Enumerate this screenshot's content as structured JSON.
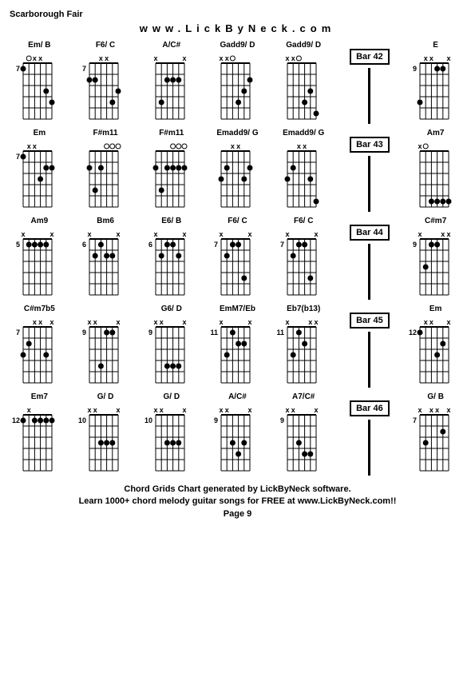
{
  "title": "Scarborough Fair",
  "url": "www.LickByNeck.com",
  "footer": {
    "line1": "Chord Grids Chart generated by LickByNeck software.",
    "line2": "Learn 1000+ chord melody guitar songs for FREE at www.LickByNeck.com!!",
    "line3": "Page 9"
  },
  "style": {
    "bg": "#ffffff",
    "text": "#000000",
    "grid_line": "#000000",
    "dot": "#000000",
    "open_circle_stroke": "#000000",
    "chord_width": 54,
    "chord_height": 100,
    "frets": 5,
    "strings": 6,
    "fret_label_fontsize": 10,
    "chord_label_fontsize": 10
  },
  "rows": [
    {
      "bar": "Bar 42",
      "chords": [
        {
          "name": "Em/ B",
          "fret": 7,
          "mutes": [
            0,
            0,
            1,
            1,
            0,
            0
          ],
          "opens": [
            0,
            1,
            0,
            0,
            0,
            0
          ],
          "dots": [
            [
              1,
              1
            ],
            [
              3,
              5
            ],
            [
              4,
              6
            ]
          ]
        },
        {
          "name": "F6/ C",
          "fret": 7,
          "mutes": [
            0,
            0,
            1,
            1,
            0,
            0
          ],
          "opens": [
            0,
            0,
            0,
            0,
            0,
            0
          ],
          "dots": [
            [
              2,
              1
            ],
            [
              2,
              2
            ],
            [
              4,
              5
            ],
            [
              3,
              6
            ]
          ]
        },
        {
          "name": "A/C#",
          "fret": null,
          "mutes": [
            1,
            0,
            0,
            0,
            0,
            1
          ],
          "opens": [
            0,
            0,
            0,
            0,
            0,
            0
          ],
          "dots": [
            [
              4,
              2
            ],
            [
              2,
              3
            ],
            [
              2,
              4
            ],
            [
              2,
              5
            ]
          ]
        },
        {
          "name": "Gadd9/ D",
          "fret": null,
          "mutes": [
            1,
            1,
            0,
            0,
            0,
            0
          ],
          "opens": [
            0,
            0,
            1,
            0,
            0,
            0
          ],
          "dots": [
            [
              4,
              4
            ],
            [
              3,
              5
            ],
            [
              2,
              6
            ]
          ]
        },
        {
          "name": "Gadd9/ D",
          "fret": null,
          "mutes": [
            1,
            1,
            0,
            0,
            0,
            0
          ],
          "opens": [
            0,
            0,
            1,
            0,
            0,
            0
          ],
          "dots": [
            [
              4,
              4
            ],
            [
              3,
              5
            ],
            [
              5,
              6
            ]
          ]
        },
        {
          "name": "E",
          "fret": 9,
          "mutes": [
            0,
            1,
            1,
            0,
            0,
            1
          ],
          "opens": [
            0,
            0,
            0,
            0,
            0,
            0
          ],
          "dots": [
            [
              4,
              1
            ],
            [
              1,
              4
            ],
            [
              1,
              5
            ]
          ]
        }
      ]
    },
    {
      "bar": "Bar 43",
      "chords": [
        {
          "name": "Em",
          "fret": 7,
          "mutes": [
            0,
            1,
            1,
            0,
            0,
            0
          ],
          "opens": [
            0,
            0,
            0,
            0,
            0,
            0
          ],
          "dots": [
            [
              1,
              1
            ],
            [
              3,
              4
            ],
            [
              2,
              5
            ],
            [
              2,
              6
            ]
          ]
        },
        {
          "name": "F#m11",
          "fret": null,
          "mutes": [
            0,
            0,
            0,
            0,
            0,
            0
          ],
          "opens": [
            0,
            0,
            0,
            1,
            1,
            1
          ],
          "dots": [
            [
              2,
              1
            ],
            [
              4,
              2
            ],
            [
              2,
              3
            ]
          ]
        },
        {
          "name": "F#m11",
          "fret": null,
          "mutes": [
            0,
            0,
            0,
            0,
            0,
            0
          ],
          "opens": [
            0,
            0,
            0,
            1,
            1,
            1
          ],
          "dots": [
            [
              2,
              1
            ],
            [
              4,
              2
            ],
            [
              2,
              3
            ],
            [
              2,
              4
            ],
            [
              2,
              5
            ],
            [
              2,
              6
            ]
          ]
        },
        {
          "name": "Emadd9/ G",
          "fret": null,
          "mutes": [
            0,
            0,
            1,
            1,
            0,
            0
          ],
          "opens": [
            0,
            0,
            0,
            0,
            0,
            0
          ],
          "dots": [
            [
              3,
              1
            ],
            [
              2,
              2
            ],
            [
              3,
              5
            ],
            [
              2,
              6
            ]
          ]
        },
        {
          "name": "Emadd9/ G",
          "fret": null,
          "mutes": [
            0,
            0,
            1,
            1,
            0,
            0
          ],
          "opens": [
            0,
            0,
            0,
            0,
            0,
            0
          ],
          "dots": [
            [
              3,
              1
            ],
            [
              2,
              2
            ],
            [
              3,
              5
            ],
            [
              5,
              6
            ]
          ]
        },
        {
          "name": "Am7",
          "fret": null,
          "mutes": [
            1,
            0,
            0,
            0,
            0,
            0
          ],
          "opens": [
            0,
            1,
            0,
            0,
            0,
            0
          ],
          "dots": [
            [
              5,
              3
            ],
            [
              5,
              4
            ],
            [
              5,
              5
            ],
            [
              5,
              6
            ]
          ]
        }
      ]
    },
    {
      "bar": "Bar 44",
      "chords": [
        {
          "name": "Am9",
          "fret": 5,
          "mutes": [
            1,
            0,
            0,
            0,
            0,
            1
          ],
          "opens": [
            0,
            0,
            0,
            0,
            0,
            0
          ],
          "dots": [
            [
              1,
              2
            ],
            [
              1,
              3
            ],
            [
              1,
              4
            ],
            [
              1,
              5
            ]
          ]
        },
        {
          "name": "Bm6",
          "fret": 6,
          "mutes": [
            1,
            0,
            0,
            0,
            0,
            1
          ],
          "opens": [
            0,
            0,
            0,
            0,
            0,
            0
          ],
          "dots": [
            [
              2,
              2
            ],
            [
              1,
              3
            ],
            [
              2,
              4
            ],
            [
              2,
              5
            ]
          ]
        },
        {
          "name": "E6/ B",
          "fret": 6,
          "mutes": [
            1,
            0,
            0,
            0,
            0,
            1
          ],
          "opens": [
            0,
            0,
            0,
            0,
            0,
            0
          ],
          "dots": [
            [
              2,
              2
            ],
            [
              1,
              3
            ],
            [
              1,
              4
            ],
            [
              2,
              5
            ]
          ]
        },
        {
          "name": "F6/ C",
          "fret": 7,
          "mutes": [
            1,
            0,
            0,
            0,
            0,
            1
          ],
          "opens": [
            0,
            0,
            0,
            0,
            0,
            0
          ],
          "dots": [
            [
              2,
              2
            ],
            [
              1,
              3
            ],
            [
              1,
              4
            ],
            [
              4,
              5
            ]
          ]
        },
        {
          "name": "F6/ C",
          "fret": 7,
          "mutes": [
            1,
            0,
            0,
            0,
            0,
            1
          ],
          "opens": [
            0,
            0,
            0,
            0,
            0,
            0
          ],
          "dots": [
            [
              2,
              2
            ],
            [
              1,
              3
            ],
            [
              1,
              4
            ],
            [
              4,
              5
            ]
          ]
        },
        {
          "name": "C#m7",
          "fret": 9,
          "mutes": [
            1,
            0,
            0,
            0,
            1,
            1
          ],
          "opens": [
            0,
            0,
            0,
            0,
            0,
            0
          ],
          "dots": [
            [
              3,
              2
            ],
            [
              1,
              3
            ],
            [
              1,
              4
            ]
          ]
        }
      ]
    },
    {
      "bar": "Bar 45",
      "chords": [
        {
          "name": "C#m7b5",
          "fret": 7,
          "mutes": [
            0,
            0,
            1,
            1,
            0,
            1
          ],
          "opens": [
            0,
            0,
            0,
            0,
            0,
            0
          ],
          "dots": [
            [
              3,
              1
            ],
            [
              2,
              2
            ],
            [
              3,
              5
            ]
          ]
        },
        {
          "name": "",
          "fret": 9,
          "mutes": [
            1,
            1,
            0,
            0,
            0,
            1
          ],
          "opens": [
            0,
            0,
            0,
            0,
            0,
            0
          ],
          "dots": [
            [
              4,
              3
            ],
            [
              1,
              4
            ],
            [
              1,
              5
            ]
          ]
        },
        {
          "name": "G6/ D",
          "fret": 9,
          "mutes": [
            1,
            1,
            0,
            0,
            0,
            1
          ],
          "opens": [
            0,
            0,
            0,
            0,
            0,
            0
          ],
          "dots": [
            [
              4,
              3
            ],
            [
              4,
              4
            ],
            [
              4,
              5
            ]
          ]
        },
        {
          "name": "EmM7/Eb",
          "fret": 11,
          "mutes": [
            1,
            0,
            0,
            0,
            0,
            1
          ],
          "opens": [
            0,
            0,
            0,
            0,
            0,
            0
          ],
          "dots": [
            [
              3,
              2
            ],
            [
              1,
              3
            ],
            [
              2,
              4
            ],
            [
              2,
              5
            ]
          ]
        },
        {
          "name": "Eb7(b13)",
          "fret": 11,
          "mutes": [
            1,
            0,
            0,
            0,
            1,
            1
          ],
          "opens": [
            0,
            0,
            0,
            0,
            0,
            0
          ],
          "dots": [
            [
              3,
              2
            ],
            [
              1,
              3
            ],
            [
              2,
              4
            ]
          ]
        },
        {
          "name": "Em",
          "fret": 12,
          "mutes": [
            0,
            1,
            1,
            0,
            0,
            1
          ],
          "opens": [
            0,
            0,
            0,
            0,
            0,
            0
          ],
          "dots": [
            [
              1,
              1
            ],
            [
              3,
              4
            ],
            [
              2,
              5
            ]
          ]
        }
      ]
    },
    {
      "bar": "Bar 46",
      "chords": [
        {
          "name": "Em7",
          "fret": 12,
          "mutes": [
            0,
            1,
            0,
            0,
            0,
            0
          ],
          "opens": [
            0,
            0,
            0,
            0,
            0,
            0
          ],
          "dots": [
            [
              1,
              1
            ],
            [
              1,
              3
            ],
            [
              1,
              4
            ],
            [
              1,
              5
            ],
            [
              1,
              6
            ]
          ]
        },
        {
          "name": "G/ D",
          "fret": 10,
          "mutes": [
            1,
            1,
            0,
            0,
            0,
            1
          ],
          "opens": [
            0,
            0,
            0,
            0,
            0,
            0
          ],
          "dots": [
            [
              3,
              3
            ],
            [
              3,
              4
            ],
            [
              3,
              5
            ]
          ]
        },
        {
          "name": "G/ D",
          "fret": 10,
          "mutes": [
            1,
            1,
            0,
            0,
            0,
            1
          ],
          "opens": [
            0,
            0,
            0,
            0,
            0,
            0
          ],
          "dots": [
            [
              3,
              3
            ],
            [
              3,
              4
            ],
            [
              3,
              5
            ]
          ]
        },
        {
          "name": "A/C#",
          "fret": 9,
          "mutes": [
            1,
            1,
            0,
            0,
            0,
            1
          ],
          "opens": [
            0,
            0,
            0,
            0,
            0,
            0
          ],
          "dots": [
            [
              3,
              3
            ],
            [
              4,
              4
            ],
            [
              3,
              5
            ]
          ]
        },
        {
          "name": "A7/C#",
          "fret": 9,
          "mutes": [
            1,
            1,
            0,
            0,
            0,
            1
          ],
          "opens": [
            0,
            0,
            0,
            0,
            0,
            0
          ],
          "dots": [
            [
              3,
              3
            ],
            [
              4,
              4
            ],
            [
              4,
              5
            ]
          ]
        },
        {
          "name": "G/ B",
          "fret": 7,
          "mutes": [
            1,
            0,
            1,
            1,
            0,
            1
          ],
          "opens": [
            0,
            0,
            0,
            0,
            0,
            0
          ],
          "dots": [
            [
              3,
              2
            ],
            [
              2,
              5
            ]
          ]
        }
      ]
    }
  ]
}
